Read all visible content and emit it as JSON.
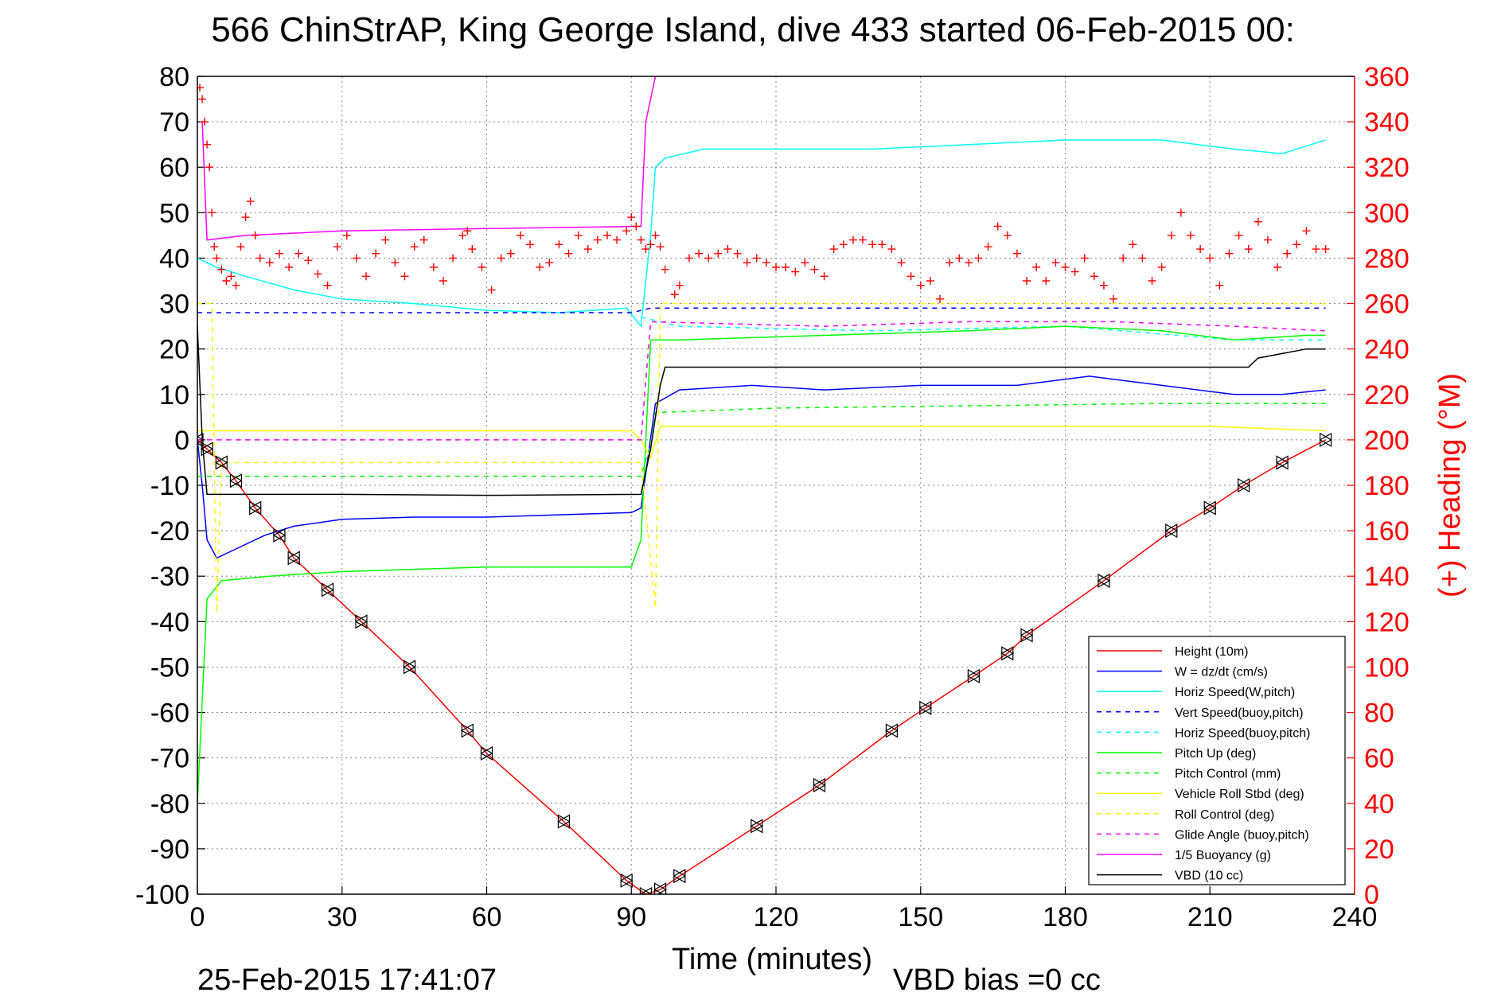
{
  "chart_data": {
    "type": "line",
    "title": "566 ChinStrAP, King George Island, dive 433 started 06-Feb-2015 00:",
    "xlabel": "Time (minutes)",
    "ylabel": "",
    "y2label": "(+) Heading (°M)",
    "xlim": [
      0,
      240
    ],
    "ylim": [
      -100,
      80
    ],
    "y2lim": [
      0,
      360
    ],
    "xticks": [
      "0",
      "30",
      "60",
      "90",
      "120",
      "150",
      "180",
      "210",
      "240"
    ],
    "yticks": [
      "80",
      "70",
      "60",
      "50",
      "40",
      "30",
      "20",
      "10",
      "0",
      "-10",
      "-20",
      "-30",
      "-40",
      "-50",
      "-60",
      "-70",
      "-80",
      "-90",
      "-100"
    ],
    "y2ticks": [
      "360",
      "340",
      "320",
      "300",
      "280",
      "260",
      "240",
      "220",
      "200",
      "180",
      "160",
      "140",
      "120",
      "100",
      "80",
      "60",
      "40",
      "20",
      "0"
    ],
    "grid": true,
    "legend_position": "bottom-right",
    "footer_timestamp": "25-Feb-2015 17:41:07",
    "footer_note": "VBD bias =0 cc",
    "colors": {
      "height": "#ff0000",
      "w": "#0000ff",
      "horiz_speed": "#00ffff",
      "pitch": "#00ff00",
      "roll": "#ffff00",
      "glide_angle": "#ff00ff",
      "buoyancy": "#ff00ff",
      "vbd": "#000000",
      "heading": "#ff0000"
    },
    "series": [
      {
        "name": "Height (10m)",
        "color": "#ff0000",
        "dash": "",
        "points": [
          [
            0,
            0
          ],
          [
            2,
            -2
          ],
          [
            5,
            -5
          ],
          [
            8,
            -9
          ],
          [
            12,
            -15
          ],
          [
            17,
            -21
          ],
          [
            20,
            -26
          ],
          [
            27,
            -33
          ],
          [
            34,
            -40
          ],
          [
            44,
            -50
          ],
          [
            56,
            -64
          ],
          [
            60,
            -69
          ],
          [
            76,
            -84
          ],
          [
            89,
            -97
          ],
          [
            93,
            -100
          ],
          [
            96,
            -99
          ],
          [
            100,
            -96
          ],
          [
            116,
            -85
          ],
          [
            129,
            -76
          ],
          [
            144,
            -64
          ],
          [
            151,
            -59
          ],
          [
            161,
            -52
          ],
          [
            168,
            -47
          ],
          [
            172,
            -43
          ],
          [
            188,
            -31
          ],
          [
            202,
            -20
          ],
          [
            210,
            -15
          ],
          [
            217,
            -10
          ],
          [
            225,
            -5
          ],
          [
            234,
            0
          ]
        ]
      },
      {
        "name": "W = dz/dt (cm/s)",
        "color": "#0000ff",
        "dash": "",
        "points": [
          [
            0,
            0
          ],
          [
            1,
            -10
          ],
          [
            2,
            -22
          ],
          [
            4,
            -26
          ],
          [
            8,
            -24
          ],
          [
            14,
            -21
          ],
          [
            20,
            -19
          ],
          [
            30,
            -17.5
          ],
          [
            45,
            -17
          ],
          [
            60,
            -17
          ],
          [
            75,
            -16.5
          ],
          [
            90,
            -16
          ],
          [
            92,
            -15
          ],
          [
            95,
            8
          ],
          [
            100,
            11
          ],
          [
            115,
            12
          ],
          [
            130,
            11
          ],
          [
            150,
            12
          ],
          [
            170,
            12
          ],
          [
            185,
            14
          ],
          [
            200,
            12
          ],
          [
            215,
            10
          ],
          [
            225,
            10
          ],
          [
            234,
            11
          ]
        ]
      },
      {
        "name": "Horiz Speed(W,pitch)",
        "color": "#00ffff",
        "dash": "",
        "points": [
          [
            0,
            40
          ],
          [
            4,
            38
          ],
          [
            10,
            36
          ],
          [
            20,
            33
          ],
          [
            30,
            31
          ],
          [
            45,
            30
          ],
          [
            60,
            28.5
          ],
          [
            75,
            28
          ],
          [
            89,
            29
          ],
          [
            92,
            25
          ],
          [
            94,
            45
          ],
          [
            95,
            60
          ],
          [
            97,
            62
          ],
          [
            105,
            64
          ],
          [
            120,
            64
          ],
          [
            140,
            64
          ],
          [
            160,
            65
          ],
          [
            180,
            66
          ],
          [
            200,
            66
          ],
          [
            215,
            64
          ],
          [
            225,
            63
          ],
          [
            234,
            66
          ]
        ]
      },
      {
        "name": "Vert Speed(buoy,pitch)",
        "color": "#0000ff",
        "dash": "6,6",
        "points": [
          [
            0,
            28
          ],
          [
            90,
            28
          ],
          [
            94,
            29
          ],
          [
            234,
            29
          ]
        ]
      },
      {
        "name": "Horiz Speed(buoy,pitch)",
        "color": "#00ffff",
        "dash": "6,6",
        "points": [
          [
            92,
            27
          ],
          [
            100,
            25
          ],
          [
            140,
            24
          ],
          [
            180,
            25
          ],
          [
            215,
            22
          ],
          [
            234,
            22
          ]
        ]
      },
      {
        "name": "Pitch Up (deg)",
        "color": "#00ff00",
        "dash": "",
        "points": [
          [
            0,
            -80
          ],
          [
            2,
            -35
          ],
          [
            5,
            -31
          ],
          [
            15,
            -30
          ],
          [
            30,
            -29
          ],
          [
            60,
            -28
          ],
          [
            90,
            -28
          ],
          [
            92,
            -22
          ],
          [
            94,
            22
          ],
          [
            100,
            22
          ],
          [
            130,
            23
          ],
          [
            160,
            24
          ],
          [
            180,
            25
          ],
          [
            200,
            24
          ],
          [
            215,
            22
          ],
          [
            230,
            23
          ],
          [
            234,
            23
          ]
        ]
      },
      {
        "name": "Pitch Control (mm)",
        "color": "#00ff00",
        "dash": "6,6",
        "points": [
          [
            0,
            -8
          ],
          [
            92,
            -8
          ],
          [
            94,
            -1
          ],
          [
            95,
            6
          ],
          [
            120,
            7
          ],
          [
            160,
            7.5
          ],
          [
            200,
            8
          ],
          [
            234,
            8
          ]
        ]
      },
      {
        "name": "Vehicle Roll Stbd (deg)",
        "color": "#ffff00",
        "dash": "",
        "points": [
          [
            0,
            2
          ],
          [
            30,
            2
          ],
          [
            60,
            2
          ],
          [
            90,
            2
          ],
          [
            92,
            0
          ],
          [
            94,
            -4
          ],
          [
            96,
            3
          ],
          [
            120,
            3
          ],
          [
            150,
            3
          ],
          [
            180,
            3
          ],
          [
            210,
            3
          ],
          [
            234,
            2
          ]
        ]
      },
      {
        "name": "Roll Control (deg)",
        "color": "#ffff00",
        "dash": "6,6",
        "points": [
          [
            0,
            30
          ],
          [
            3,
            30
          ],
          [
            4,
            -38
          ],
          [
            5,
            -5
          ],
          [
            40,
            -5
          ],
          [
            80,
            -5
          ],
          [
            92,
            -5
          ],
          [
            95,
            -37
          ],
          [
            96,
            30
          ],
          [
            130,
            30
          ],
          [
            170,
            30
          ],
          [
            210,
            30
          ],
          [
            234,
            30
          ]
        ]
      },
      {
        "name": "Glide Angle (buoy,pitch)",
        "color": "#ff00ff",
        "dash": "6,6",
        "points": [
          [
            0,
            0
          ],
          [
            92,
            0
          ],
          [
            94,
            26
          ],
          [
            130,
            25
          ],
          [
            160,
            26
          ],
          [
            190,
            26
          ],
          [
            215,
            25
          ],
          [
            234,
            24
          ]
        ]
      },
      {
        "name": "1/5 Buoyancy (g)",
        "color": "#ff00ff",
        "dash": "",
        "points": [
          [
            1,
            70
          ],
          [
            2,
            44
          ],
          [
            10,
            45
          ],
          [
            30,
            46
          ],
          [
            60,
            46.5
          ],
          [
            92,
            47
          ],
          [
            93,
            70
          ],
          [
            95,
            80
          ]
        ]
      },
      {
        "name": "VBD (10 cc)",
        "color": "#000000",
        "dash": "",
        "points": [
          [
            0,
            25
          ],
          [
            1,
            0
          ],
          [
            2,
            -12
          ],
          [
            30,
            -12
          ],
          [
            60,
            -12.2
          ],
          [
            92,
            -12
          ],
          [
            94,
            -2
          ],
          [
            96,
            12
          ],
          [
            97,
            16
          ],
          [
            130,
            16
          ],
          [
            160,
            16
          ],
          [
            190,
            16
          ],
          [
            218,
            16
          ],
          [
            220,
            18
          ],
          [
            225,
            19
          ],
          [
            230,
            20
          ],
          [
            234,
            20
          ]
        ]
      }
    ],
    "heading": {
      "name": "Heading",
      "axis": "right",
      "marker": "+",
      "points": [
        [
          0.5,
          355
        ],
        [
          1,
          350
        ],
        [
          1.5,
          340
        ],
        [
          2,
          330
        ],
        [
          2.5,
          320
        ],
        [
          3,
          300
        ],
        [
          3.5,
          285
        ],
        [
          4,
          280
        ],
        [
          5,
          275
        ],
        [
          6,
          270
        ],
        [
          7,
          272
        ],
        [
          8,
          268
        ],
        [
          9,
          285
        ],
        [
          10,
          298
        ],
        [
          11,
          305
        ],
        [
          12,
          290
        ],
        [
          13,
          280
        ],
        [
          15,
          278
        ],
        [
          17,
          282
        ],
        [
          19,
          276
        ],
        [
          21,
          282
        ],
        [
          23,
          279
        ],
        [
          25,
          273
        ],
        [
          27,
          268
        ],
        [
          29,
          285
        ],
        [
          31,
          290
        ],
        [
          33,
          280
        ],
        [
          35,
          272
        ],
        [
          37,
          282
        ],
        [
          39,
          288
        ],
        [
          41,
          278
        ],
        [
          43,
          272
        ],
        [
          45,
          285
        ],
        [
          47,
          288
        ],
        [
          49,
          276
        ],
        [
          51,
          270
        ],
        [
          53,
          280
        ],
        [
          55,
          290
        ],
        [
          56,
          292
        ],
        [
          57,
          284
        ],
        [
          59,
          276
        ],
        [
          61,
          266
        ],
        [
          63,
          280
        ],
        [
          65,
          282
        ],
        [
          67,
          290
        ],
        [
          69,
          286
        ],
        [
          71,
          276
        ],
        [
          73,
          278
        ],
        [
          75,
          286
        ],
        [
          77,
          282
        ],
        [
          79,
          290
        ],
        [
          81,
          284
        ],
        [
          83,
          288
        ],
        [
          85,
          290
        ],
        [
          87,
          288
        ],
        [
          89,
          292
        ],
        [
          90,
          298
        ],
        [
          91,
          294
        ],
        [
          92,
          288
        ],
        [
          93,
          284
        ],
        [
          94,
          286
        ],
        [
          95,
          290
        ],
        [
          96,
          285
        ],
        [
          97,
          275
        ],
        [
          99,
          264
        ],
        [
          100,
          268
        ],
        [
          102,
          280
        ],
        [
          104,
          282
        ],
        [
          106,
          280
        ],
        [
          108,
          282
        ],
        [
          110,
          284
        ],
        [
          112,
          282
        ],
        [
          114,
          278
        ],
        [
          116,
          280
        ],
        [
          118,
          278
        ],
        [
          120,
          276
        ],
        [
          122,
          276
        ],
        [
          124,
          274
        ],
        [
          126,
          278
        ],
        [
          128,
          275
        ],
        [
          130,
          272
        ],
        [
          132,
          284
        ],
        [
          134,
          286
        ],
        [
          136,
          288
        ],
        [
          138,
          288
        ],
        [
          140,
          286
        ],
        [
          142,
          286
        ],
        [
          144,
          284
        ],
        [
          146,
          278
        ],
        [
          148,
          272
        ],
        [
          150,
          268
        ],
        [
          152,
          270
        ],
        [
          154,
          262
        ],
        [
          156,
          278
        ],
        [
          158,
          280
        ],
        [
          160,
          278
        ],
        [
          162,
          280
        ],
        [
          164,
          285
        ],
        [
          166,
          294
        ],
        [
          168,
          290
        ],
        [
          170,
          282
        ],
        [
          172,
          270
        ],
        [
          174,
          276
        ],
        [
          176,
          270
        ],
        [
          178,
          278
        ],
        [
          180,
          276
        ],
        [
          182,
          274
        ],
        [
          184,
          280
        ],
        [
          186,
          272
        ],
        [
          188,
          268
        ],
        [
          190,
          262
        ],
        [
          192,
          280
        ],
        [
          194,
          286
        ],
        [
          196,
          280
        ],
        [
          198,
          270
        ],
        [
          200,
          276
        ],
        [
          202,
          290
        ],
        [
          204,
          300
        ],
        [
          206,
          290
        ],
        [
          208,
          284
        ],
        [
          210,
          280
        ],
        [
          212,
          268
        ],
        [
          214,
          282
        ],
        [
          216,
          290
        ],
        [
          218,
          284
        ],
        [
          220,
          296
        ],
        [
          222,
          288
        ],
        [
          224,
          276
        ],
        [
          226,
          282
        ],
        [
          228,
          286
        ],
        [
          230,
          292
        ],
        [
          232,
          284
        ],
        [
          234,
          284
        ]
      ]
    }
  }
}
